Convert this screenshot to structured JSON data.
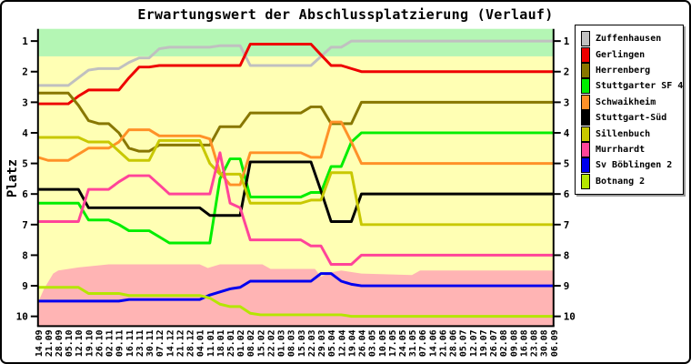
{
  "chart_data": {
    "type": "line",
    "title": "Erwartungswert der Abschlussplatzierung (Verlauf)",
    "ylabel": "Platz",
    "y_axis_inverted": true,
    "y_ticks": [
      1,
      2,
      3,
      4,
      5,
      6,
      7,
      8,
      9,
      10
    ],
    "y_range": [
      0.6,
      10.32
    ],
    "grid": false,
    "legend_position": "right",
    "x_tick_labels": [
      "14.09",
      "21.09",
      "28.09",
      "05.10",
      "12.10",
      "19.10",
      "26.10",
      "02.11",
      "09.11",
      "16.11",
      "23.11",
      "30.11",
      "07.12",
      "14.12",
      "21.12",
      "28.12",
      "04.01",
      "11.01",
      "18.01",
      "25.01",
      "01.02",
      "08.02",
      "15.02",
      "22.02",
      "01.03",
      "08.03",
      "15.03",
      "22.03",
      "29.03",
      "05.04",
      "12.04",
      "19.04",
      "26.04",
      "03.05",
      "10.05",
      "17.05",
      "24.05",
      "31.05",
      "07.06",
      "14.06",
      "21.06",
      "28.06",
      "05.07",
      "12.07",
      "19.07",
      "26.07",
      "02.08",
      "09.08",
      "16.08",
      "23.08",
      "30.08",
      "06.09"
    ],
    "zones": {
      "promotion": {
        "label": "promotion-zone",
        "color": "#b4f6b4",
        "from": 0.6,
        "to": 1.5
      },
      "mid": {
        "label": "neutral-zone",
        "color": "#ffffb4",
        "from": 1.5,
        "to": 10.32
      },
      "relegation": {
        "label": "relegation-zone",
        "color": "#ffb4b4",
        "boundary": [
          [
            1,
            9.55
          ],
          [
            1.6,
            9.1
          ],
          [
            2.5,
            8.6
          ],
          [
            3,
            8.5
          ],
          [
            5,
            8.4
          ],
          [
            8,
            8.3
          ],
          [
            17,
            8.3
          ],
          [
            17.8,
            8.42
          ],
          [
            19,
            8.3
          ],
          [
            23.2,
            8.3
          ],
          [
            24,
            8.45
          ],
          [
            28.4,
            8.45
          ],
          [
            29,
            8.7
          ],
          [
            30.2,
            8.55
          ],
          [
            31,
            8.5
          ],
          [
            33,
            8.6
          ],
          [
            38,
            8.65
          ],
          [
            38.8,
            8.5
          ],
          [
            52,
            8.5
          ]
        ]
      }
    },
    "series": [
      {
        "name": "Zuffenhausen",
        "color": "#c0c0c0",
        "values": [
          2.45,
          2.45,
          2.45,
          2.45,
          2.2,
          1.95,
          1.9,
          1.9,
          1.9,
          1.7,
          1.55,
          1.55,
          1.25,
          1.2,
          1.2,
          1.2,
          1.2,
          1.2,
          1.15,
          1.15,
          1.15,
          1.8,
          1.8,
          1.8,
          1.8,
          1.8,
          1.8,
          1.8,
          1.5,
          1.2,
          1.2,
          1,
          1,
          1,
          1,
          1,
          1,
          1,
          1,
          1,
          1,
          1,
          1,
          1,
          1,
          1,
          1,
          1,
          1,
          1,
          1,
          1
        ]
      },
      {
        "name": "Gerlingen",
        "color": "#ee0000",
        "values": [
          3.05,
          3.05,
          3.05,
          3.05,
          2.8,
          2.6,
          2.6,
          2.6,
          2.6,
          2.2,
          1.85,
          1.85,
          1.8,
          1.8,
          1.8,
          1.8,
          1.8,
          1.8,
          1.8,
          1.8,
          1.8,
          1.1,
          1.1,
          1.1,
          1.1,
          1.1,
          1.1,
          1.1,
          1.45,
          1.8,
          1.8,
          1.9,
          2,
          2,
          2,
          2,
          2,
          2,
          2,
          2,
          2,
          2,
          2,
          2,
          2,
          2,
          2,
          2,
          2,
          2,
          2,
          2
        ]
      },
      {
        "name": "Herrenberg",
        "color": "#887700",
        "values": [
          2.7,
          2.7,
          2.7,
          2.7,
          3.1,
          3.6,
          3.7,
          3.7,
          4,
          4.5,
          4.6,
          4.6,
          4.4,
          4.4,
          4.4,
          4.4,
          4.4,
          4.4,
          3.8,
          3.8,
          3.8,
          3.35,
          3.35,
          3.35,
          3.35,
          3.35,
          3.35,
          3.15,
          3.15,
          3.7,
          3.7,
          3.7,
          3,
          3,
          3,
          3,
          3,
          3,
          3,
          3,
          3,
          3,
          3,
          3,
          3,
          3,
          3,
          3,
          3,
          3,
          3,
          3
        ]
      },
      {
        "name": "Stuttgarter SF 4",
        "color": "#00ee00",
        "values": [
          6.3,
          6.3,
          6.3,
          6.3,
          6.3,
          6.85,
          6.85,
          6.85,
          7,
          7.2,
          7.2,
          7.2,
          7.4,
          7.6,
          7.6,
          7.6,
          7.6,
          7.6,
          5.5,
          4.85,
          4.85,
          6.1,
          6.1,
          6.1,
          6.1,
          6.1,
          6.1,
          5.95,
          5.95,
          5.1,
          5.1,
          4.3,
          4,
          4,
          4,
          4,
          4,
          4,
          4,
          4,
          4,
          4,
          4,
          4,
          4,
          4,
          4,
          4,
          4,
          4,
          4,
          4
        ]
      },
      {
        "name": "Schwaikheim",
        "color": "#ff9128",
        "values": [
          4.8,
          4.9,
          4.9,
          4.9,
          4.7,
          4.5,
          4.5,
          4.5,
          4.3,
          3.9,
          3.9,
          3.9,
          4.1,
          4.1,
          4.1,
          4.1,
          4.1,
          4.2,
          5.3,
          5.7,
          5.7,
          4.65,
          4.65,
          4.65,
          4.65,
          4.65,
          4.65,
          4.8,
          4.8,
          3.65,
          3.65,
          4.3,
          5,
          5,
          5,
          5,
          5,
          5,
          5,
          5,
          5,
          5,
          5,
          5,
          5,
          5,
          5,
          5,
          5,
          5,
          5,
          5
        ]
      },
      {
        "name": "Stuttgart-Süd",
        "color": "#000000",
        "values": [
          5.85,
          5.85,
          5.85,
          5.85,
          5.85,
          6.45,
          6.45,
          6.45,
          6.45,
          6.45,
          6.45,
          6.45,
          6.45,
          6.45,
          6.45,
          6.45,
          6.45,
          6.7,
          6.7,
          6.7,
          6.7,
          4.95,
          4.95,
          4.95,
          4.95,
          4.95,
          4.95,
          4.95,
          5.9,
          6.9,
          6.9,
          6.9,
          6,
          6,
          6,
          6,
          6,
          6,
          6,
          6,
          6,
          6,
          6,
          6,
          6,
          6,
          6,
          6,
          6,
          6,
          6,
          6
        ]
      },
      {
        "name": "Sillenbuch",
        "color": "#c8c800",
        "values": [
          4.15,
          4.15,
          4.15,
          4.15,
          4.15,
          4.3,
          4.3,
          4.3,
          4.6,
          4.9,
          4.9,
          4.9,
          4.25,
          4.25,
          4.25,
          4.25,
          4.25,
          5,
          5.35,
          5.35,
          5.35,
          6.3,
          6.3,
          6.3,
          6.3,
          6.3,
          6.3,
          6.2,
          6.2,
          5.3,
          5.3,
          5.3,
          7,
          7,
          7,
          7,
          7,
          7,
          7,
          7,
          7,
          7,
          7,
          7,
          7,
          7,
          7,
          7,
          7,
          7,
          7,
          7
        ]
      },
      {
        "name": "Murrhardt",
        "color": "#ff4499",
        "values": [
          6.9,
          6.9,
          6.9,
          6.9,
          6.9,
          5.85,
          5.85,
          5.85,
          5.6,
          5.4,
          5.4,
          5.4,
          5.7,
          6,
          6,
          6,
          6,
          6,
          4.65,
          6.3,
          6.45,
          7.5,
          7.5,
          7.5,
          7.5,
          7.5,
          7.5,
          7.7,
          7.7,
          8.3,
          8.3,
          8.3,
          8,
          8,
          8,
          8,
          8,
          8,
          8,
          8,
          8,
          8,
          8,
          8,
          8,
          8,
          8,
          8,
          8,
          8,
          8,
          8
        ]
      },
      {
        "name": "Sv Böblingen 2",
        "color": "#0000ee",
        "values": [
          9.5,
          9.5,
          9.5,
          9.5,
          9.5,
          9.5,
          9.5,
          9.5,
          9.5,
          9.45,
          9.45,
          9.45,
          9.45,
          9.45,
          9.45,
          9.45,
          9.45,
          9.3,
          9.2,
          9.1,
          9.05,
          8.85,
          8.85,
          8.85,
          8.85,
          8.85,
          8.85,
          8.85,
          8.6,
          8.6,
          8.85,
          8.95,
          9,
          9,
          9,
          9,
          9,
          9,
          9,
          9,
          9,
          9,
          9,
          9,
          9,
          9,
          9,
          9,
          9,
          9,
          9,
          9
        ]
      },
      {
        "name": "Botnang 2",
        "color": "#b4e600",
        "values": [
          9.05,
          9.05,
          9.05,
          9.05,
          9.05,
          9.25,
          9.25,
          9.25,
          9.25,
          9.32,
          9.32,
          9.32,
          9.32,
          9.32,
          9.32,
          9.32,
          9.32,
          9.4,
          9.6,
          9.68,
          9.68,
          9.9,
          9.95,
          9.95,
          9.95,
          9.95,
          9.95,
          9.95,
          9.95,
          9.95,
          9.95,
          10,
          10,
          10,
          10,
          10,
          10,
          10,
          10,
          10,
          10,
          10,
          10,
          10,
          10,
          10,
          10,
          10,
          10,
          10,
          10,
          10
        ]
      }
    ]
  }
}
